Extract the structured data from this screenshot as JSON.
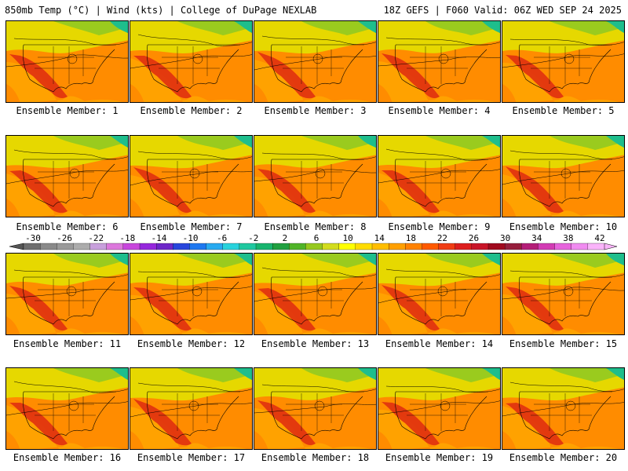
{
  "header": {
    "left": "850mb Temp (°C) | Wind (kts) | College of DuPage NEXLAB",
    "right": "18Z GEFS | F060 Valid: 06Z WED SEP 24 2025"
  },
  "caption_prefix": "Ensemble Member: ",
  "members": [
    {
      "label": "Ensemble Member: 1"
    },
    {
      "label": "Ensemble Member: 2"
    },
    {
      "label": "Ensemble Member: 3"
    },
    {
      "label": "Ensemble Member: 4"
    },
    {
      "label": "Ensemble Member: 5"
    },
    {
      "label": "Ensemble Member: 6"
    },
    {
      "label": "Ensemble Member: 7"
    },
    {
      "label": "Ensemble Member: 8"
    },
    {
      "label": "Ensemble Member: 9"
    },
    {
      "label": "Ensemble Member: 10"
    },
    {
      "label": "Ensemble Member: 11"
    },
    {
      "label": "Ensemble Member: 12"
    },
    {
      "label": "Ensemble Member: 13"
    },
    {
      "label": "Ensemble Member: 14"
    },
    {
      "label": "Ensemble Member: 15"
    },
    {
      "label": "Ensemble Member: 16"
    },
    {
      "label": "Ensemble Member: 17"
    },
    {
      "label": "Ensemble Member: 18"
    },
    {
      "label": "Ensemble Member: 19"
    },
    {
      "label": "Ensemble Member: 20"
    }
  ],
  "colorbar": {
    "labels": [
      "-30",
      "-26",
      "-22",
      "-18",
      "-14",
      "-10",
      "-6",
      "-2",
      "2",
      "6",
      "10",
      "14",
      "18",
      "22",
      "26",
      "30",
      "34",
      "38",
      "42"
    ],
    "colors": [
      "#6e6e6e",
      "#8a8a8a",
      "#9a9a9a",
      "#acacac",
      "#c8a0dc",
      "#dc78dc",
      "#c846dc",
      "#9628dc",
      "#6e28c8",
      "#2846dc",
      "#1e78f0",
      "#28aaf0",
      "#28d2dc",
      "#20c8a0",
      "#18b46e",
      "#20a040",
      "#50b428",
      "#96c81e",
      "#d2dc1e",
      "#ffff00",
      "#ffdc00",
      "#ffbe00",
      "#ffa000",
      "#ff8200",
      "#ff5a00",
      "#f03c14",
      "#dc1e1e",
      "#c81428",
      "#a00a1e",
      "#961e3c",
      "#b41e78",
      "#d23cb4",
      "#e664dc",
      "#f08cf0",
      "#fab4fa"
    ]
  },
  "map_colors": {
    "hot": "#e03010",
    "warm": "#ff8c00",
    "mild": "#ffb400",
    "cool": "#e6d800",
    "cold": "#9acb1e",
    "coldest": "#1ebe8c",
    "lines": "#000000"
  }
}
